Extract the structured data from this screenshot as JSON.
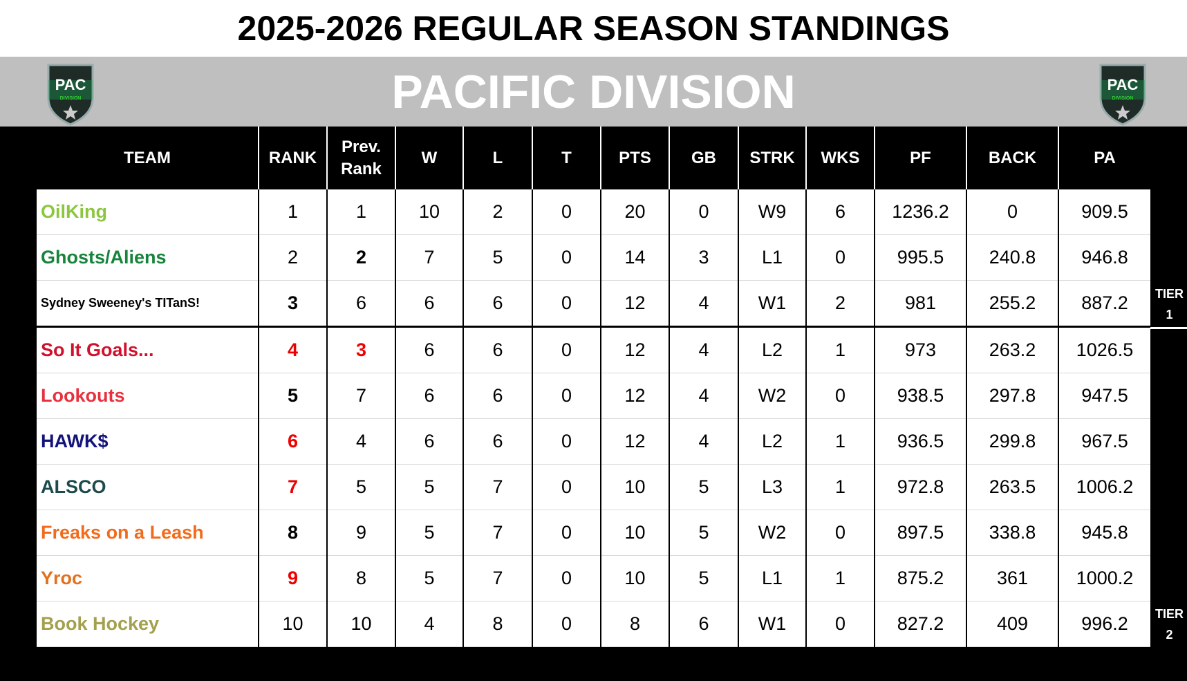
{
  "header": {
    "title": "2025-2026 REGULAR SEASON STANDINGS",
    "division": "PACIFIC DIVISION",
    "logo_text": "PAC",
    "logo_subtext": "DIVISION"
  },
  "table": {
    "columns": [
      "TEAM",
      "RANK",
      "Prev. Rank",
      "W",
      "L",
      "T",
      "PTS",
      "GB",
      "STRK",
      "WKS",
      "PF",
      "BACK",
      "PA"
    ],
    "rows": [
      [
        "OilKing",
        "1",
        "1",
        "10",
        "2",
        "0",
        "20",
        "0",
        "W9",
        "6",
        "1236.2",
        "0",
        "909.5"
      ],
      [
        "Ghosts/Aliens",
        "2",
        "2",
        "7",
        "5",
        "0",
        "14",
        "3",
        "L1",
        "0",
        "995.5",
        "240.8",
        "946.8"
      ],
      [
        "Sydney Sweeney's TITanS!",
        "3",
        "6",
        "6",
        "6",
        "0",
        "12",
        "4",
        "W1",
        "2",
        "981",
        "255.2",
        "887.2"
      ],
      [
        "So It Goals...",
        "4",
        "3",
        "6",
        "6",
        "0",
        "12",
        "4",
        "L2",
        "1",
        "973",
        "263.2",
        "1026.5"
      ],
      [
        "Lookouts",
        "5",
        "7",
        "6",
        "6",
        "0",
        "12",
        "4",
        "W2",
        "0",
        "938.5",
        "297.8",
        "947.5"
      ],
      [
        "HAWK$",
        "6",
        "4",
        "6",
        "6",
        "0",
        "12",
        "4",
        "L2",
        "1",
        "936.5",
        "299.8",
        "967.5"
      ],
      [
        "ALSCO",
        "7",
        "5",
        "5",
        "7",
        "0",
        "10",
        "5",
        "L3",
        "1",
        "972.8",
        "263.5",
        "1006.2"
      ],
      [
        "Freaks on a Leash",
        "8",
        "9",
        "5",
        "7",
        "0",
        "10",
        "5",
        "W2",
        "0",
        "897.5",
        "338.8",
        "945.8"
      ],
      [
        "Yroc",
        "9",
        "8",
        "5",
        "7",
        "0",
        "10",
        "5",
        "L1",
        "1",
        "875.2",
        "361",
        "1000.2"
      ],
      [
        "Book Hockey",
        "10",
        "10",
        "4",
        "8",
        "0",
        "8",
        "6",
        "W1",
        "0",
        "827.2",
        "409",
        "996.2"
      ]
    ]
  },
  "tiers": [
    {
      "label": "TIER",
      "number": "1"
    },
    {
      "label": "TIER",
      "number": "2"
    }
  ]
}
